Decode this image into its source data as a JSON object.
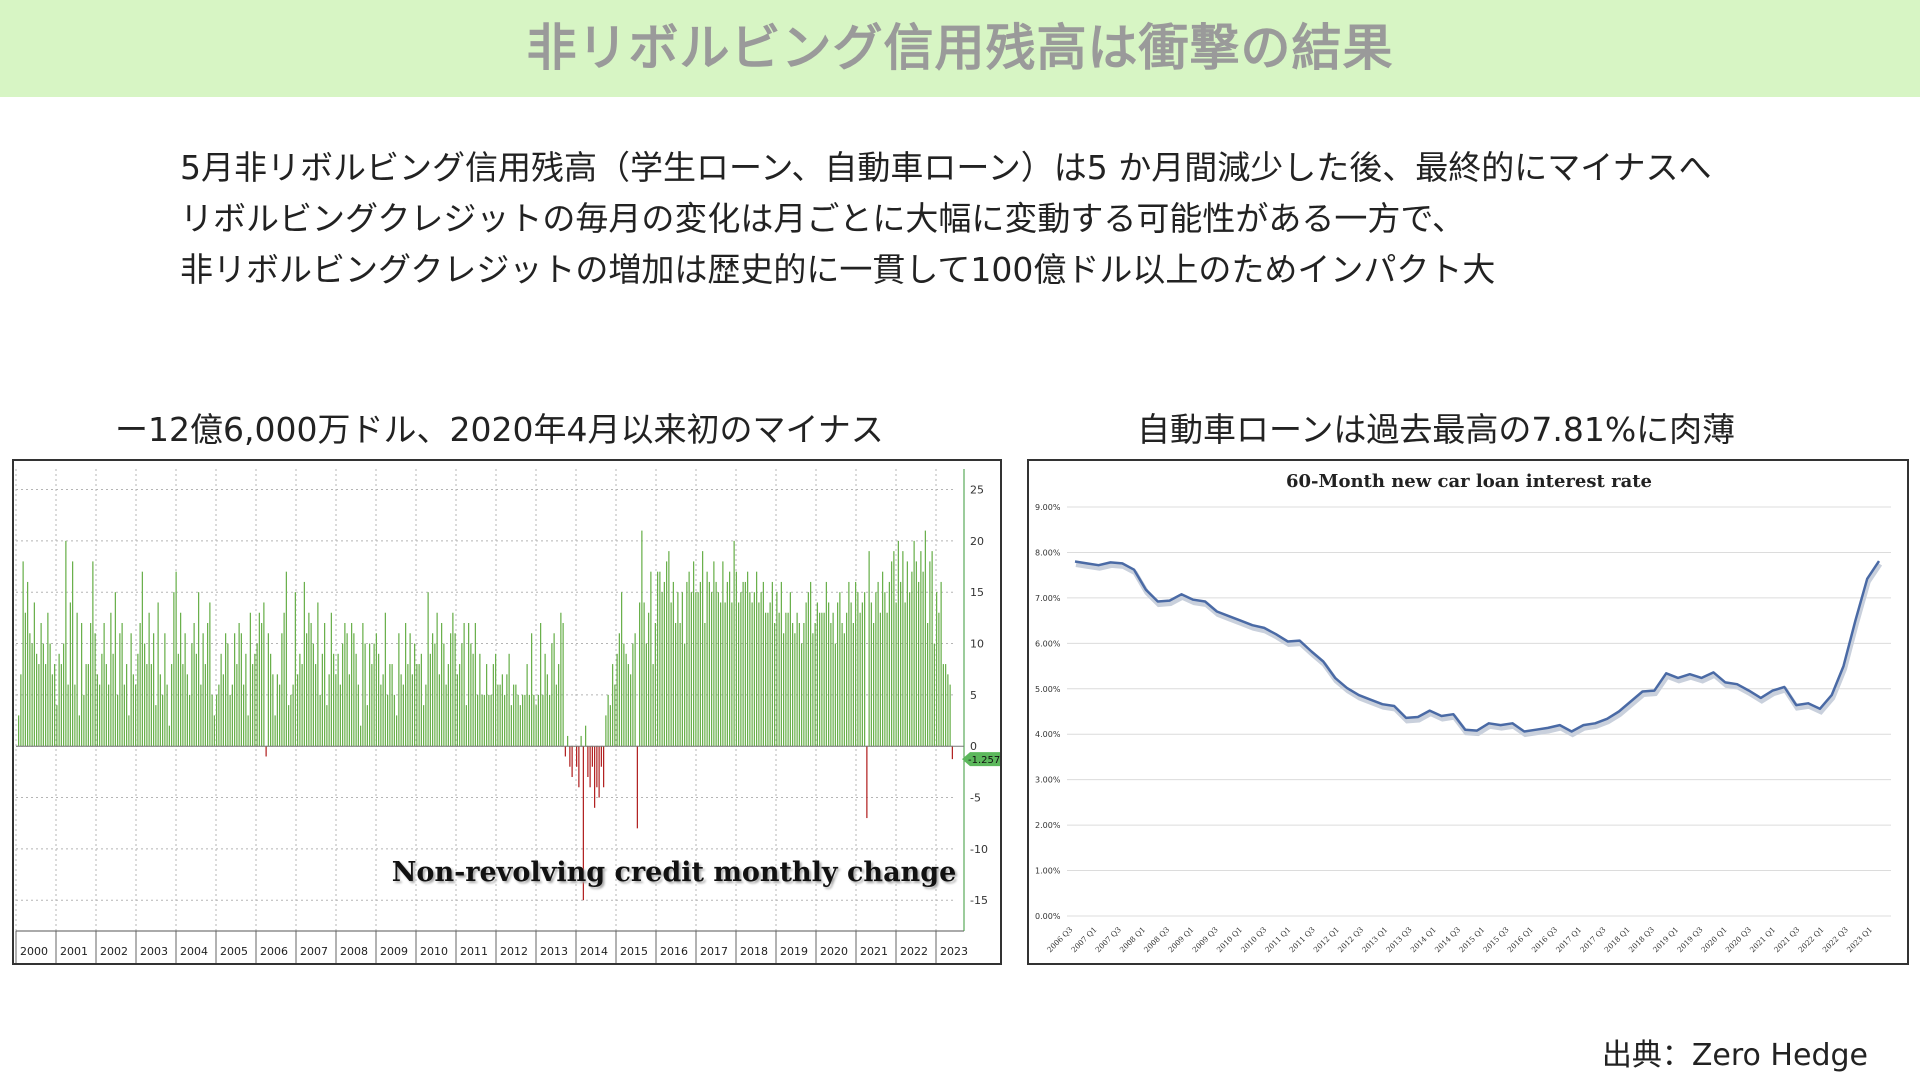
{
  "header": {
    "title": "非リボルビング信用残高は衝撃の結果"
  },
  "lead": {
    "lines": [
      "5月非リボルビング信用残高（学生ローン、自動車ローン）は5 か月間減少した後、最終的にマイナスへ",
      "リボルビングクレジットの毎月の変化は月ごとに大幅に変動する可能性がある一方で、",
      "非リボルビングクレジットの増加は歴史的に一貫して100億ドル以上のためインパクト大"
    ]
  },
  "left_caption": "ー12億6,000万ドル、2020年4月以来初のマイナス",
  "right_caption": "自動車ローンは過去最高の7.81%に肉薄",
  "source": "出典：Zero Hedge",
  "colors": {
    "banner": "#d7f5c4",
    "positive_bar": "#6ab04c",
    "negative_bar": "#b22222",
    "line": "#4a6aa5",
    "last_badge": "#5cb85c"
  },
  "chart_data": [
    {
      "type": "bar",
      "title": "Non-revolving credit monthly change",
      "ylim": [
        -18,
        27
      ],
      "yticks": [
        25,
        20,
        15,
        10,
        5,
        0,
        -5,
        -10,
        -15
      ],
      "x_labels": [
        "2000",
        "2001",
        "2002",
        "2003",
        "2004",
        "2005",
        "2006",
        "2007",
        "2008",
        "2009",
        "2010",
        "2011",
        "2012",
        "2013",
        "2014",
        "2015",
        "2016",
        "2017",
        "2018",
        "2019",
        "2020",
        "2021",
        "2022",
        "2023"
      ],
      "last_value_label": "-1.2572",
      "grid": true,
      "yaxis_side": "right",
      "values": [
        3,
        7,
        18,
        13,
        16,
        11,
        10,
        14,
        9,
        8,
        12,
        10,
        8,
        13,
        10,
        7,
        8,
        4,
        9,
        8,
        10,
        20,
        6,
        14,
        18,
        6,
        13,
        3,
        12,
        5,
        8,
        8,
        12,
        18,
        11,
        7,
        6,
        9,
        12,
        8,
        6,
        13,
        9,
        15,
        5,
        11,
        12,
        6,
        8,
        3,
        11,
        7,
        6,
        9,
        12,
        17,
        10,
        8,
        13,
        8,
        11,
        4,
        14,
        7,
        5,
        11,
        6,
        2,
        8,
        15,
        17,
        9,
        13,
        8,
        11,
        7,
        5,
        10,
        12,
        9,
        15,
        6,
        11,
        8,
        12,
        14,
        5,
        3,
        5,
        6,
        9,
        7,
        11,
        10,
        5,
        6,
        11,
        8,
        12,
        11,
        6,
        9,
        3,
        13,
        8,
        9,
        10,
        13,
        12,
        14,
        -1,
        11,
        9,
        7,
        3,
        7,
        6,
        11,
        13,
        17,
        4,
        5,
        6,
        15,
        7,
        9,
        8,
        16,
        11,
        13,
        12,
        10,
        8,
        14,
        5,
        9,
        12,
        4,
        7,
        13,
        9,
        7,
        9,
        6,
        10,
        12,
        11,
        7,
        12,
        11,
        9,
        6,
        2,
        12,
        10,
        4,
        10,
        8,
        10,
        11,
        9,
        6,
        7,
        13,
        5,
        8,
        8,
        5,
        3,
        11,
        7,
        6,
        12,
        8,
        11,
        7,
        10,
        8,
        8,
        9,
        4,
        6,
        15,
        9,
        11,
        10,
        13,
        7,
        12,
        10,
        6,
        8,
        11,
        13,
        11,
        7,
        8,
        10,
        12,
        4,
        12,
        10,
        9,
        12,
        5,
        9,
        5,
        5,
        8,
        5,
        5,
        8,
        9,
        6,
        6,
        7,
        5,
        7,
        9,
        4,
        6,
        6,
        5,
        4,
        5,
        5,
        8,
        5,
        11,
        5,
        4,
        5,
        12,
        5,
        9,
        7,
        5,
        10,
        11,
        6,
        8,
        13,
        12,
        -1,
        1,
        -2,
        -3,
        0,
        -2,
        -4,
        1,
        -15,
        2,
        -3,
        -4,
        -2,
        -6,
        -4,
        -5,
        -2,
        -4,
        3,
        5,
        4,
        8,
        6,
        9,
        11,
        15,
        10,
        9,
        8,
        7,
        10,
        11,
        -8,
        14,
        21,
        14,
        10,
        13,
        17,
        8,
        12,
        17,
        17,
        15,
        16,
        18,
        19,
        14,
        16,
        12,
        15,
        12,
        15,
        10,
        16,
        17,
        15,
        18,
        15,
        15,
        16,
        19,
        12,
        17,
        16,
        15,
        18,
        16,
        15,
        14,
        18,
        14,
        16,
        17,
        14,
        20,
        17,
        14,
        15,
        16,
        16,
        17,
        15,
        14,
        15,
        17,
        14,
        15,
        16,
        13,
        13,
        14,
        16,
        12,
        15,
        13,
        16,
        11,
        13,
        13,
        15,
        12,
        11,
        13,
        12,
        10,
        12,
        14,
        15,
        16,
        11,
        12,
        14,
        13,
        13,
        13,
        16,
        14,
        12,
        13,
        10,
        14,
        15,
        12,
        11,
        13,
        16,
        14,
        12,
        16,
        15,
        13,
        14,
        15,
        -7,
        19,
        14,
        12,
        15,
        16,
        13,
        17,
        15,
        13,
        16,
        18,
        19,
        14,
        20,
        16,
        19,
        14,
        18,
        15,
        17,
        20,
        18,
        16,
        19,
        17,
        21,
        12,
        18,
        19,
        10,
        15,
        13,
        16,
        8,
        8,
        7,
        6,
        -1.26
      ]
    },
    {
      "type": "line",
      "title": "60-Month new car loan interest rate",
      "ylim": [
        0,
        9
      ],
      "yticks": [
        "0.00%",
        "1.00%",
        "2.00%",
        "3.00%",
        "4.00%",
        "5.00%",
        "6.00%",
        "7.00%",
        "8.00%",
        "9.00%"
      ],
      "x_labels": [
        "2006 Q3",
        "2007 Q1",
        "2007 Q3",
        "2008 Q1",
        "2008 Q3",
        "2009 Q1",
        "2009 Q3",
        "2010 Q1",
        "2010 Q3",
        "2011 Q1",
        "2011 Q3",
        "2012 Q1",
        "2012 Q3",
        "2013 Q1",
        "2013 Q3",
        "2014 Q1",
        "2014 Q3",
        "2015 Q1",
        "2015 Q3",
        "2016 Q1",
        "2016 Q3",
        "2017 Q1",
        "2017 Q3",
        "2018 Q1",
        "2018 Q3",
        "2019 Q1",
        "2019 Q3",
        "2020 Q1",
        "2020 Q3",
        "2021 Q1",
        "2021 Q3",
        "2022 Q1",
        "2022 Q3",
        "2023 Q1"
      ],
      "values": [
        7.8,
        7.76,
        7.72,
        7.78,
        7.76,
        7.62,
        7.18,
        6.92,
        6.94,
        7.08,
        6.96,
        6.92,
        6.7,
        6.6,
        6.5,
        6.4,
        6.34,
        6.2,
        6.04,
        6.06,
        5.82,
        5.6,
        5.24,
        5.02,
        4.86,
        4.76,
        4.66,
        4.62,
        4.36,
        4.38,
        4.52,
        4.4,
        4.44,
        4.1,
        4.08,
        4.24,
        4.2,
        4.24,
        4.06,
        4.1,
        4.14,
        4.2,
        4.06,
        4.2,
        4.24,
        4.34,
        4.5,
        4.72,
        4.94,
        4.96,
        5.34,
        5.24,
        5.32,
        5.24,
        5.36,
        5.14,
        5.1,
        4.96,
        4.8,
        4.96,
        5.04,
        4.64,
        4.68,
        4.56,
        4.86,
        5.5,
        6.5,
        7.42,
        7.81
      ],
      "grid": true
    }
  ]
}
